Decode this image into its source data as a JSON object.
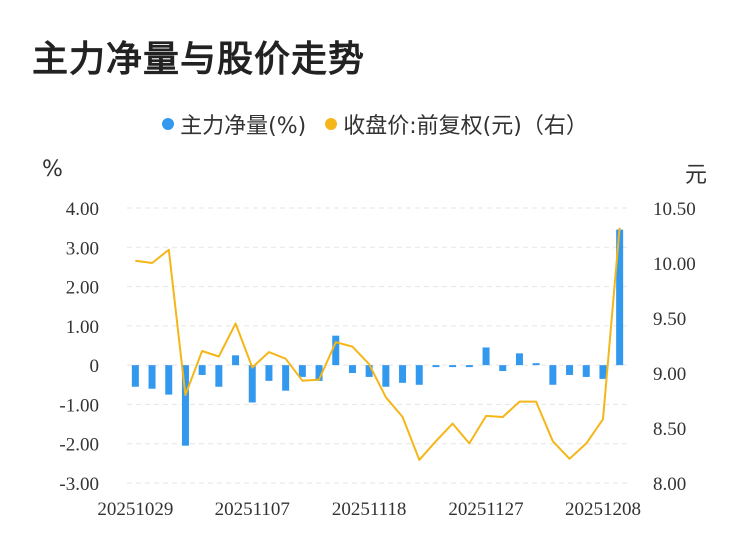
{
  "header": {
    "title": "主力净量与股价走势"
  },
  "legend": {
    "left_label": "主力净量(%)",
    "right_label": "收盘价:前复权(元)（右）"
  },
  "axes": {
    "left_unit": "%",
    "right_unit": "元"
  },
  "colors": {
    "bar": "#3399ee",
    "line": "#f5b619",
    "grid": "#e5e5e5"
  },
  "chart_data": {
    "type": "bar+line",
    "x_tick_labels": [
      "20251029",
      "20251107",
      "20251118",
      "20251127",
      "20251208"
    ],
    "left_axis": {
      "ylim": [
        -3,
        4
      ],
      "ticks": [
        "4.00",
        "3.00",
        "2.00",
        "1.00",
        "0",
        "-1.00",
        "-2.00",
        "-3.00"
      ]
    },
    "right_axis": {
      "ylim": [
        8.0,
        10.5
      ],
      "ticks": [
        "10.50",
        "10.00",
        "9.50",
        "9.00",
        "8.50",
        "8.00"
      ]
    },
    "series": [
      {
        "name": "主力净量(%)",
        "kind": "bar",
        "axis": "left",
        "values": [
          -0.55,
          -0.6,
          -0.75,
          -2.05,
          -0.25,
          -0.55,
          0.25,
          -0.95,
          -0.4,
          -0.65,
          -0.3,
          -0.4,
          0.75,
          -0.2,
          -0.3,
          -0.55,
          -0.45,
          -0.5,
          -0.05,
          -0.05,
          -0.05,
          0.45,
          -0.15,
          0.3,
          0.05,
          -0.5,
          -0.25,
          -0.3,
          -0.35,
          3.45
        ]
      },
      {
        "name": "收盘价:前复权(元)（右）",
        "kind": "line",
        "axis": "right",
        "values": [
          10.02,
          10.0,
          10.12,
          8.8,
          9.2,
          9.15,
          9.45,
          9.05,
          9.19,
          9.13,
          8.93,
          8.94,
          9.28,
          9.24,
          9.08,
          8.78,
          8.6,
          8.21,
          8.38,
          8.54,
          8.36,
          8.61,
          8.6,
          8.74,
          8.74,
          8.38,
          8.22,
          8.36,
          8.58,
          10.32
        ]
      }
    ]
  }
}
